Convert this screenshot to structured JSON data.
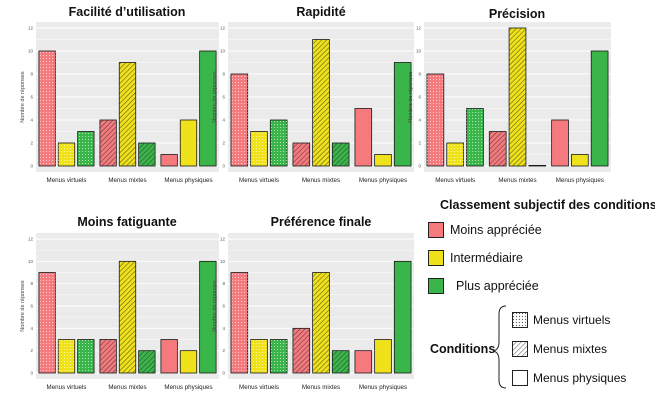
{
  "colors": {
    "moins": "#f47a7e",
    "inter": "#f0e21a",
    "plus": "#3ab54a",
    "panel_bg": "#ebebeb",
    "grid": "#ffffff"
  },
  "chart_data": [
    {
      "type": "bar",
      "title": "Facilité d’utilisation",
      "ylabel": "Nombre de réponses",
      "ylim": [
        0,
        12
      ],
      "yticks": [
        "0",
        "2",
        "4",
        "6",
        "8",
        "10",
        "12"
      ],
      "categories": [
        "Menus virtuels",
        "Menus mixtes",
        "Menus physiques"
      ],
      "series": [
        {
          "name": "Moins appréciée",
          "values": [
            10,
            4,
            1
          ]
        },
        {
          "name": "Intermédiaire",
          "values": [
            2,
            9,
            4
          ]
        },
        {
          "name": "Plus appréciée",
          "values": [
            3,
            2,
            10
          ]
        }
      ]
    },
    {
      "type": "bar",
      "title": "Rapidité",
      "ylabel": "Nombre de réponses",
      "ylim": [
        0,
        12
      ],
      "yticks": [
        "0",
        "2",
        "4",
        "6",
        "8",
        "10",
        "12"
      ],
      "categories": [
        "Menus virtuels",
        "Menus mixtes",
        "Menus physiques"
      ],
      "series": [
        {
          "name": "Moins appréciée",
          "values": [
            8,
            2,
            5
          ]
        },
        {
          "name": "Intermédiaire",
          "values": [
            3,
            11,
            1
          ]
        },
        {
          "name": "Plus appréciée",
          "values": [
            4,
            2,
            9
          ]
        }
      ]
    },
    {
      "type": "bar",
      "title": "Précision",
      "ylabel": "Nombre de réponses",
      "ylim": [
        0,
        12
      ],
      "yticks": [
        "0",
        "2",
        "4",
        "6",
        "8",
        "10",
        "12"
      ],
      "categories": [
        "Menus virtuels",
        "Menus mixtes",
        "Menus physiques"
      ],
      "series": [
        {
          "name": "Moins appréciée",
          "values": [
            8,
            3,
            4
          ]
        },
        {
          "name": "Intermédiaire",
          "values": [
            2,
            12,
            1
          ]
        },
        {
          "name": "Plus appréciée",
          "values": [
            5,
            0,
            10
          ]
        }
      ]
    },
    {
      "type": "bar",
      "title": "Moins fatiguante",
      "ylabel": "Nombre de réponses",
      "ylim": [
        0,
        12
      ],
      "yticks": [
        "0",
        "2",
        "4",
        "6",
        "8",
        "10",
        "12"
      ],
      "categories": [
        "Menus virtuels",
        "Menus mixtes",
        "Menus physiques"
      ],
      "series": [
        {
          "name": "Moins appréciée",
          "values": [
            9,
            3,
            3
          ]
        },
        {
          "name": "Intermédiaire",
          "values": [
            3,
            10,
            2
          ]
        },
        {
          "name": "Plus appréciée",
          "values": [
            3,
            2,
            10
          ]
        }
      ]
    },
    {
      "type": "bar",
      "title": "Préférence finale",
      "ylabel": "Nombre de réponses",
      "ylim": [
        0,
        12
      ],
      "yticks": [
        "0",
        "2",
        "4",
        "6",
        "8",
        "10",
        "12"
      ],
      "categories": [
        "Menus virtuels",
        "Menus mixtes",
        "Menus physiques"
      ],
      "series": [
        {
          "name": "Moins appréciée",
          "values": [
            9,
            4,
            2
          ]
        },
        {
          "name": "Intermédiaire",
          "values": [
            3,
            9,
            3
          ]
        },
        {
          "name": "Plus appréciée",
          "values": [
            3,
            2,
            10
          ]
        }
      ]
    }
  ],
  "legend": {
    "title": "Classement subjectif des conditions",
    "rank_items": [
      "Moins appréciée",
      "Intermédiaire",
      "Plus appréciée"
    ],
    "conditions_title": "Conditions",
    "condition_items": [
      "Menus virtuels",
      "Menus mixtes",
      "Menus physiques"
    ]
  }
}
